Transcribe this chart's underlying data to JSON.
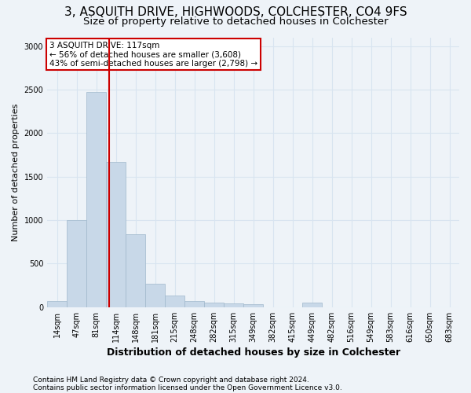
{
  "title": "3, ASQUITH DRIVE, HIGHWOODS, COLCHESTER, CO4 9FS",
  "subtitle": "Size of property relative to detached houses in Colchester",
  "xlabel": "Distribution of detached houses by size in Colchester",
  "ylabel": "Number of detached properties",
  "footnote1": "Contains HM Land Registry data © Crown copyright and database right 2024.",
  "footnote2": "Contains public sector information licensed under the Open Government Licence v3.0.",
  "categories": [
    "14sqm",
    "47sqm",
    "81sqm",
    "114sqm",
    "148sqm",
    "181sqm",
    "215sqm",
    "248sqm",
    "282sqm",
    "315sqm",
    "349sqm",
    "382sqm",
    "415sqm",
    "449sqm",
    "482sqm",
    "516sqm",
    "549sqm",
    "583sqm",
    "616sqm",
    "650sqm",
    "683sqm"
  ],
  "values": [
    70,
    1000,
    2470,
    1670,
    840,
    270,
    130,
    70,
    50,
    40,
    35,
    0,
    0,
    50,
    0,
    0,
    0,
    0,
    0,
    0,
    0
  ],
  "bar_color": "#c8d8e8",
  "bar_edge_color": "#a0b8cc",
  "vline_x": 2.65,
  "vline_color": "#cc0000",
  "annotation_title": "3 ASQUITH DRIVE: 117sqm",
  "annotation_line2": "← 56% of detached houses are smaller (3,608)",
  "annotation_line3": "43% of semi-detached houses are larger (2,798) →",
  "annotation_box_color": "#ffffff",
  "annotation_box_edge": "#cc0000",
  "ylim": [
    0,
    3100
  ],
  "yticks": [
    0,
    500,
    1000,
    1500,
    2000,
    2500,
    3000
  ],
  "grid_color": "#d8e4f0",
  "background_color": "#eef3f8",
  "title_fontsize": 11,
  "subtitle_fontsize": 9.5,
  "xlabel_fontsize": 9,
  "ylabel_fontsize": 8,
  "tick_fontsize": 7,
  "footnote_fontsize": 6.5,
  "annotation_fontsize": 7.5
}
